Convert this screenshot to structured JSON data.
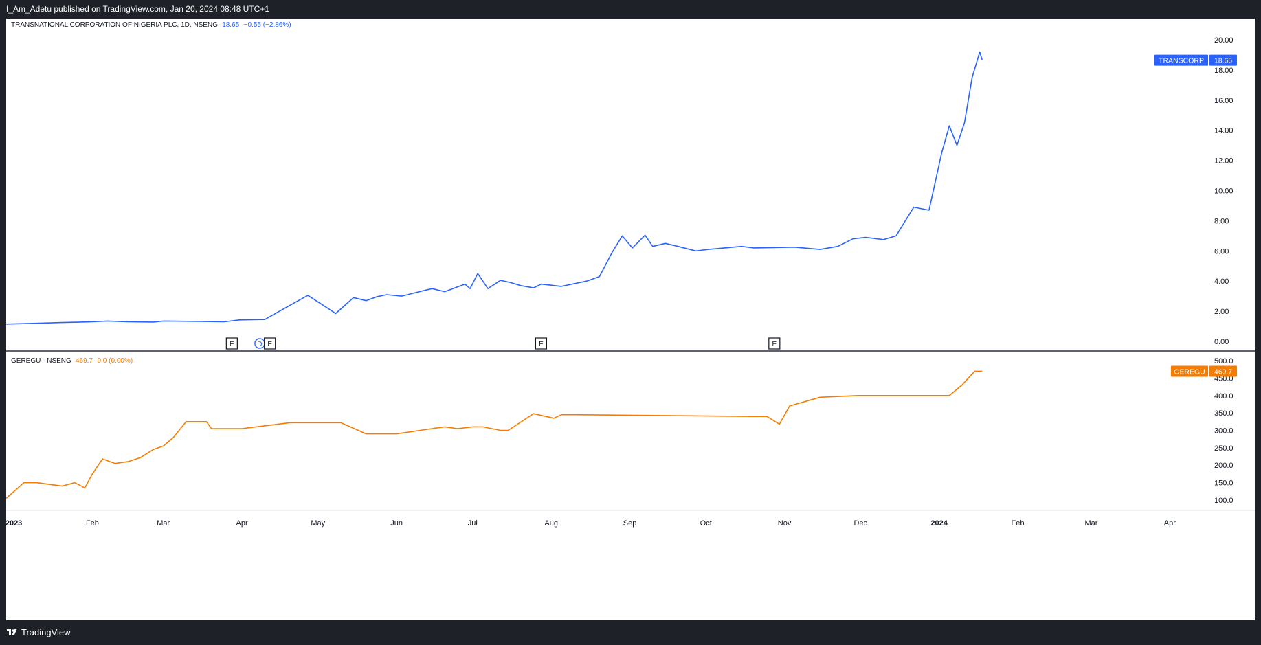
{
  "header": {
    "published_text": "I_Am_Adetu published on TradingView.com, Jan 20, 2024 08:48 UTC+1"
  },
  "footer": {
    "brand": "TradingView"
  },
  "colors": {
    "transcorp_line": "#2962ff",
    "geregu_line": "#f57c00",
    "background": "#ffffff",
    "frame": "#1f2129"
  },
  "x_axis": {
    "labels": [
      {
        "text": "2023",
        "date": "2023-01-01",
        "bold": true
      },
      {
        "text": "Feb",
        "date": "2023-02-01"
      },
      {
        "text": "Mar",
        "date": "2023-03-01"
      },
      {
        "text": "Apr",
        "date": "2023-04-01"
      },
      {
        "text": "May",
        "date": "2023-05-01"
      },
      {
        "text": "Jun",
        "date": "2023-06-01"
      },
      {
        "text": "Jul",
        "date": "2023-07-01"
      },
      {
        "text": "Aug",
        "date": "2023-08-01"
      },
      {
        "text": "Sep",
        "date": "2023-09-01"
      },
      {
        "text": "Oct",
        "date": "2023-10-01"
      },
      {
        "text": "Nov",
        "date": "2023-11-01"
      },
      {
        "text": "Dec",
        "date": "2023-12-01"
      },
      {
        "text": "2024",
        "date": "2024-01-01",
        "bold": true
      },
      {
        "text": "Feb",
        "date": "2024-02-01"
      },
      {
        "text": "Mar",
        "date": "2024-03-01"
      },
      {
        "text": "Apr",
        "date": "2024-04-01"
      }
    ]
  },
  "chart_data": [
    {
      "type": "line",
      "title": "TRANSNATIONAL CORPORATION OF NIGERIA PLC, 1D, NSENG",
      "legend_value": "18.65",
      "legend_change": "−0.55 (−2.86%)",
      "series": [
        {
          "name": "TRANSCORP",
          "last_value": "18.65",
          "x": [
            "2022-12-29",
            "2023-01-10",
            "2023-01-20",
            "2023-02-01",
            "2023-02-07",
            "2023-02-15",
            "2023-02-25",
            "2023-03-01",
            "2023-03-15",
            "2023-03-25",
            "2023-03-31",
            "2023-04-10",
            "2023-04-20",
            "2023-04-27",
            "2023-05-03",
            "2023-05-08",
            "2023-05-15",
            "2023-05-20",
            "2023-05-24",
            "2023-05-28",
            "2023-06-03",
            "2023-06-10",
            "2023-06-15",
            "2023-06-20",
            "2023-06-28",
            "2023-06-30",
            "2023-07-03",
            "2023-07-07",
            "2023-07-12",
            "2023-07-16",
            "2023-07-20",
            "2023-07-25",
            "2023-07-28",
            "2023-08-05",
            "2023-08-15",
            "2023-08-20",
            "2023-08-25",
            "2023-08-29",
            "2023-09-02",
            "2023-09-07",
            "2023-09-10",
            "2023-09-15",
            "2023-09-20",
            "2023-09-27",
            "2023-10-02",
            "2023-10-15",
            "2023-10-20",
            "2023-11-05",
            "2023-11-15",
            "2023-11-22",
            "2023-11-28",
            "2023-12-03",
            "2023-12-10",
            "2023-12-15",
            "2023-12-22",
            "2023-12-28",
            "2024-01-02",
            "2024-01-05",
            "2024-01-08",
            "2024-01-11",
            "2024-01-14",
            "2024-01-17",
            "2024-01-18"
          ],
          "values": [
            1.15,
            1.2,
            1.25,
            1.3,
            1.35,
            1.3,
            1.28,
            1.35,
            1.32,
            1.3,
            1.42,
            1.45,
            2.4,
            3.05,
            2.4,
            1.85,
            2.9,
            2.7,
            2.95,
            3.1,
            3.0,
            3.3,
            3.5,
            3.3,
            3.8,
            3.5,
            4.5,
            3.5,
            4.05,
            3.9,
            3.7,
            3.55,
            3.8,
            3.65,
            4.0,
            4.3,
            5.9,
            7.0,
            6.2,
            7.05,
            6.3,
            6.5,
            6.3,
            6.0,
            6.1,
            6.3,
            6.2,
            6.25,
            6.1,
            6.3,
            6.8,
            6.9,
            6.75,
            7.0,
            8.9,
            8.7,
            12.5,
            14.3,
            13.0,
            14.5,
            17.5,
            19.2,
            18.65
          ]
        }
      ],
      "ylim": [
        0,
        20
      ],
      "y_ticks": [
        "20.00",
        "18.00",
        "16.00",
        "14.00",
        "12.00",
        "10.00",
        "8.00",
        "6.00",
        "4.00",
        "2.00",
        "0.00"
      ],
      "markers": [
        {
          "label": "E",
          "date": "2023-03-28",
          "kind": "earnings"
        },
        {
          "label": "D",
          "date": "2023-04-08",
          "kind": "dividend"
        },
        {
          "label": "E",
          "date": "2023-04-12",
          "kind": "earnings"
        },
        {
          "label": "E",
          "date": "2023-07-28",
          "kind": "earnings"
        },
        {
          "label": "E",
          "date": "2023-10-28",
          "kind": "earnings"
        }
      ]
    },
    {
      "type": "line",
      "title": "GEREGU · NSENG",
      "legend_value": "469.7",
      "legend_change": "0.0 (0.00%)",
      "series": [
        {
          "name": "GEREGU",
          "last_value": "469.7",
          "x": [
            "2022-12-29",
            "2023-01-05",
            "2023-01-10",
            "2023-01-20",
            "2023-01-25",
            "2023-01-29",
            "2023-02-01",
            "2023-02-05",
            "2023-02-10",
            "2023-02-15",
            "2023-02-20",
            "2023-02-25",
            "2023-03-01",
            "2023-03-05",
            "2023-03-10",
            "2023-03-14",
            "2023-03-18",
            "2023-03-20",
            "2023-04-01",
            "2023-04-20",
            "2023-05-01",
            "2023-05-10",
            "2023-05-20",
            "2023-06-01",
            "2023-06-15",
            "2023-06-20",
            "2023-06-25",
            "2023-07-01",
            "2023-07-05",
            "2023-07-12",
            "2023-07-15",
            "2023-07-25",
            "2023-08-02",
            "2023-08-05",
            "2023-08-10",
            "2023-10-20",
            "2023-10-25",
            "2023-10-30",
            "2023-11-03",
            "2023-11-15",
            "2023-11-30",
            "2023-12-15",
            "2024-01-05",
            "2024-01-10",
            "2024-01-15",
            "2024-01-18"
          ],
          "values": [
            105,
            150,
            150,
            140,
            150,
            135,
            175,
            218,
            205,
            210,
            222,
            245,
            255,
            280,
            325,
            325,
            325,
            305,
            305,
            322,
            322,
            322,
            290,
            290,
            305,
            310,
            305,
            310,
            310,
            300,
            300,
            348,
            335,
            345,
            345,
            340,
            340,
            318,
            370,
            395,
            400,
            400,
            400,
            430,
            469.7,
            469.7
          ]
        }
      ],
      "ylim": [
        90,
        510
      ],
      "y_ticks": [
        "500.0",
        "450.0",
        "400.0",
        "350.0",
        "300.0",
        "250.0",
        "200.0",
        "150.0",
        "100.0"
      ]
    }
  ]
}
